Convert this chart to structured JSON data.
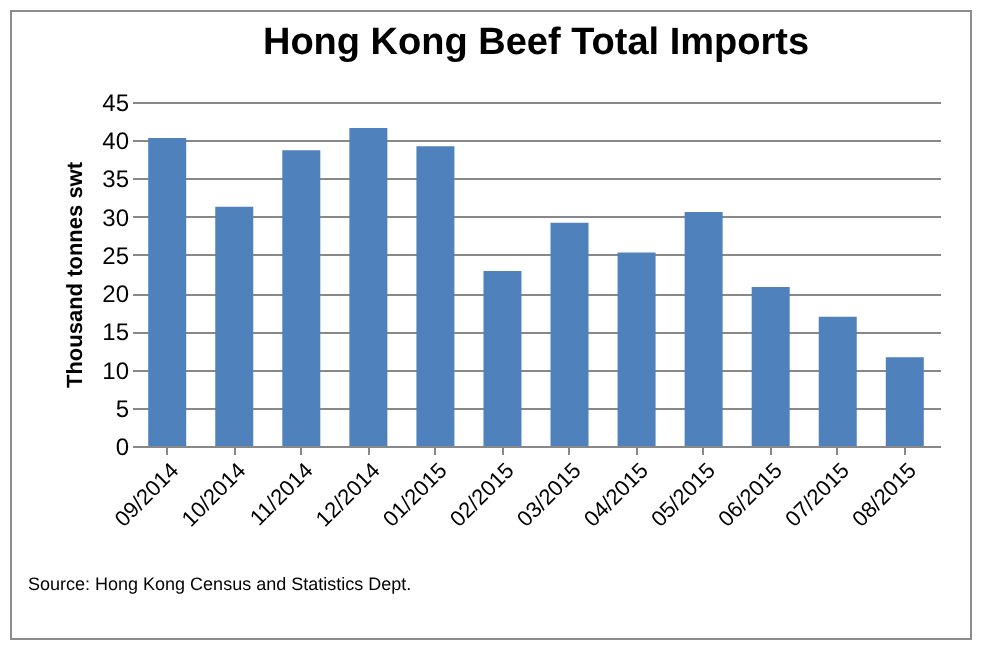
{
  "chart_data": {
    "type": "bar",
    "title": "Hong Kong Beef Total Imports",
    "ylabel": "Thousand tonnes swt",
    "categories": [
      "09/2014",
      "10/2014",
      "11/2014",
      "12/2014",
      "01/2015",
      "02/2015",
      "03/2015",
      "04/2015",
      "05/2015",
      "06/2015",
      "07/2015",
      "08/2015"
    ],
    "values": [
      40.3,
      31.3,
      38.7,
      41.6,
      39.2,
      22.9,
      29.2,
      25.3,
      30.6,
      20.8,
      16.9,
      11.6
    ],
    "color": "#4f81bd",
    "ylim": [
      0,
      45
    ],
    "yticks": [
      0,
      5,
      10,
      15,
      20,
      25,
      30,
      35,
      40,
      45
    ],
    "grid": "y",
    "annotations": [
      "Source: Hong Kong Census and Statistics Dept."
    ]
  }
}
